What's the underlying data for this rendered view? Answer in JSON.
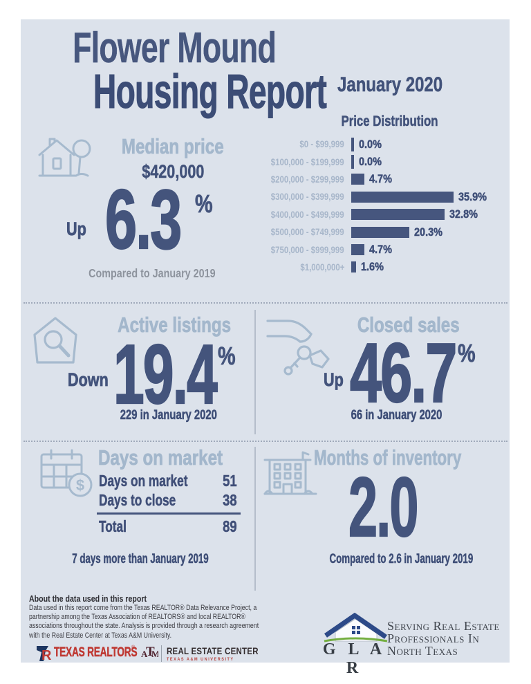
{
  "header": {
    "title_line1": "Flower Mound",
    "title_line2": "Housing Report"
  },
  "chart_data": {
    "type": "bar",
    "orientation": "horizontal",
    "title": "January 2020",
    "subtitle": "Price Distribution",
    "categories": [
      "$0 - $99,999",
      "$100,000 - $199,999",
      "$200,000 - $299,999",
      "$300,000 - $399,999",
      "$400,000 - $499,999",
      "$500,000 - $749,999",
      "$750,000 - $999,999",
      "$1,000,000+"
    ],
    "values": [
      0.0,
      0.0,
      4.7,
      35.9,
      32.8,
      20.3,
      4.7,
      1.6
    ],
    "value_labels": [
      "0.0%",
      "0.0%",
      "4.7%",
      "35.9%",
      "32.8%",
      "20.3%",
      "4.7%",
      "1.6%"
    ],
    "xlim": [
      0,
      40
    ],
    "grid": false,
    "legend": "none",
    "bar_color": "#46567e",
    "label_color": "#a7b6ca",
    "value_color": "#3f4f78"
  },
  "median_price": {
    "heading": "Median price",
    "price": "$420,000",
    "direction": "Up",
    "value": "6.3",
    "percent": "%",
    "note": "Compared to January 2019"
  },
  "active_listings": {
    "heading": "Active listings",
    "direction": "Down",
    "value": "19.4",
    "percent": "%",
    "note": "229 in January 2020"
  },
  "closed_sales": {
    "heading": "Closed sales",
    "direction": "Up",
    "value": "46.7",
    "percent": "%",
    "note": "66 in January 2020"
  },
  "days_on_market": {
    "heading": "Days on market",
    "rows": [
      {
        "label": "Days on market",
        "value": "51"
      },
      {
        "label": "Days to close",
        "value": "38"
      }
    ],
    "total_label": "Total",
    "total_value": "89",
    "note": "7 days more than January 2019"
  },
  "months_of_inventory": {
    "heading": "Months of inventory",
    "value": "2.0",
    "note": "Compared to 2.6 in January 2019"
  },
  "about": {
    "heading": "About the data used in this report",
    "lines": [
      "Data used in this report come from the Texas REALTOR® Data Relevance Project, a",
      "partnership among the Texas Association of REALTORS® and local REALTOR®",
      "associations throughout the state. Analysis is provided through a research agreement",
      "with the Real Estate Center at Texas A&M University."
    ]
  },
  "footer": {
    "tr_mark_letter": "R",
    "tr_wordmark": "TEXAS REALTORS",
    "tr_reg": "®",
    "atm_letters": [
      "A",
      "T",
      "M"
    ],
    "rec_line1": "REAL ESTATE CENTER",
    "rec_line2": "TEXAS A&M UNIVERSITY",
    "glar_word": "G L A R",
    "glar_tagline": [
      "Serving Real Estate",
      "Professionals In",
      "North Texas"
    ]
  },
  "icons": {
    "calendar_dollar_glyph": "$"
  },
  "colors": {
    "panel_bg": "#dce2eb",
    "navy": "#44547c",
    "heading_light_blue": "#a3b7cc",
    "icon_stroke": "#a6bace",
    "note_gray": "#8d939d",
    "bar": "#46567e",
    "realtor_red": "#bf3933",
    "atm_maroon": "#4c1f2b",
    "glar_roof_blue": "#2d4a88",
    "glar_grass_green": "#74ae41"
  }
}
